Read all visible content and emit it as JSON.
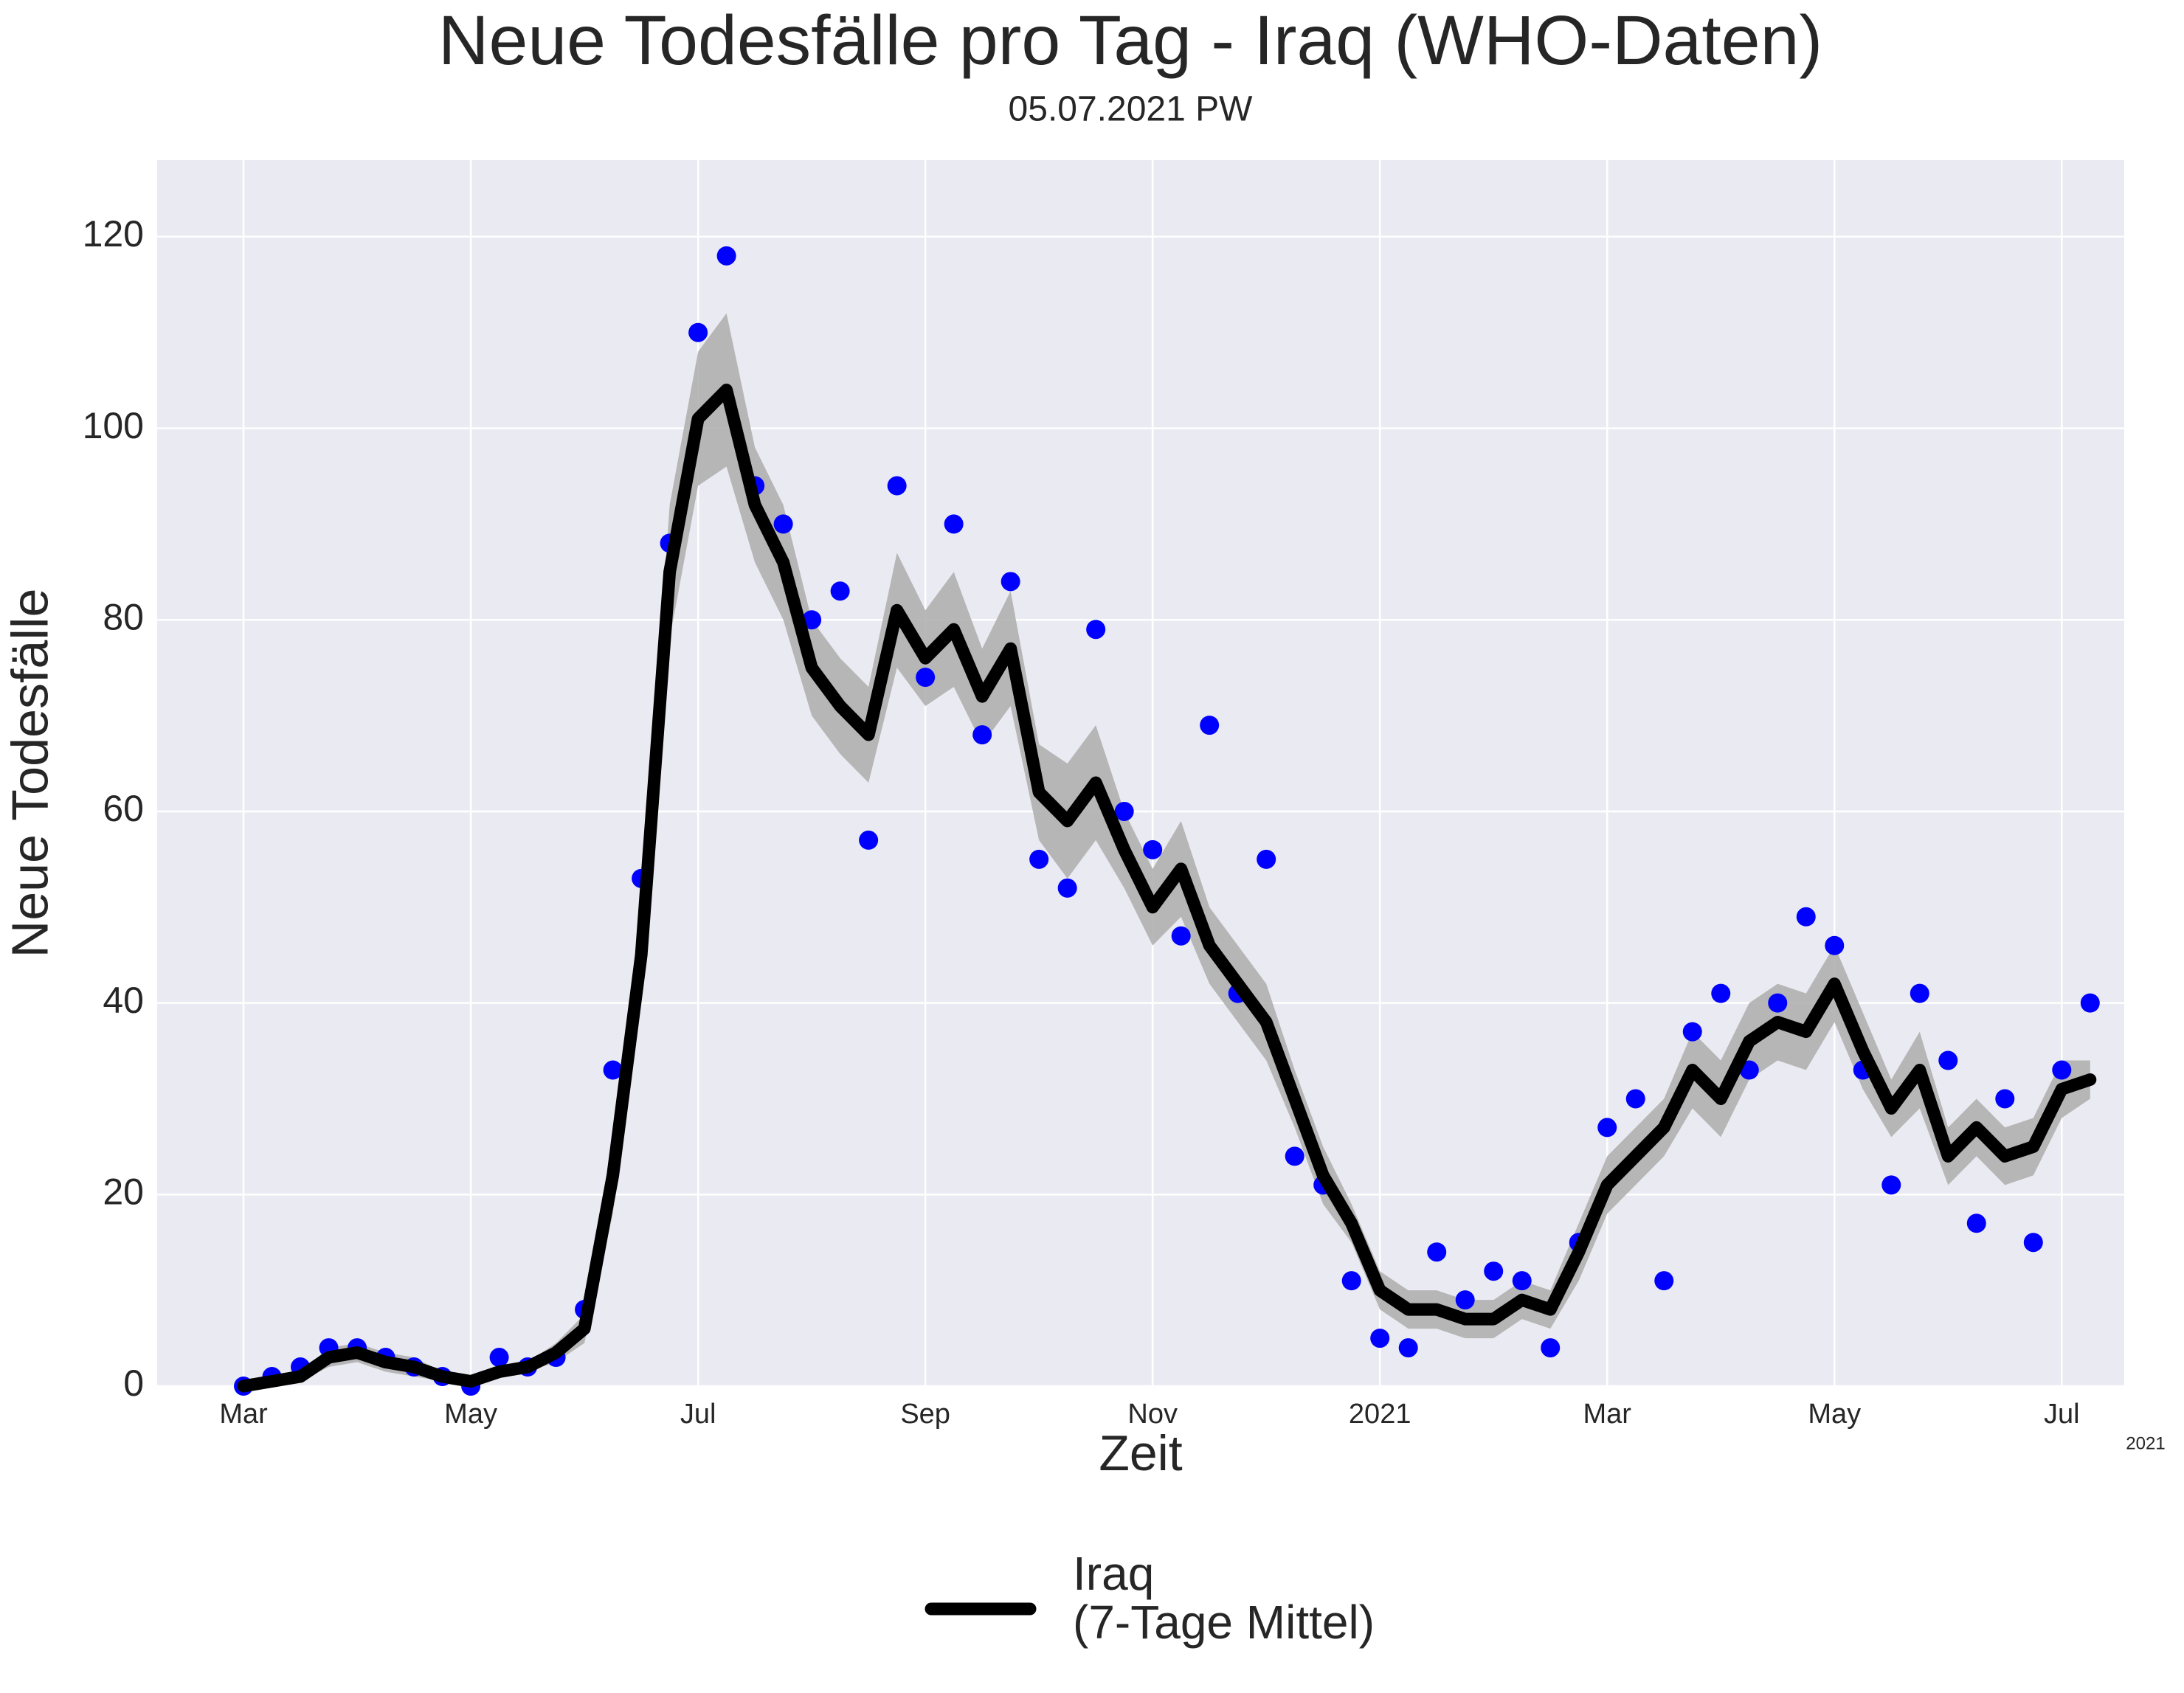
{
  "chart_data": {
    "type": "line",
    "title": "Neue Todesfälle pro Tag - Iraq (WHO-Daten)",
    "subtitle": "05.07.2021 PW",
    "x_label": "Zeit",
    "y_label": "Neue Todesfälle",
    "x_offset_label": "2021",
    "x": [
      0,
      0.25,
      0.5,
      0.75,
      1,
      1.25,
      1.5,
      1.75,
      2,
      2.25,
      2.5,
      2.75,
      3,
      3.25,
      3.5,
      3.75,
      4,
      4.25,
      4.5,
      4.75,
      5,
      5.25,
      5.5,
      5.75,
      6,
      6.25,
      6.5,
      6.75,
      7,
      7.25,
      7.5,
      7.75,
      8,
      8.25,
      8.5,
      8.75,
      9,
      9.25,
      9.5,
      9.75,
      10,
      10.25,
      10.5,
      10.75,
      11,
      11.25,
      11.5,
      11.75,
      12,
      12.25,
      12.5,
      12.75,
      13,
      13.25,
      13.5,
      13.75,
      14,
      14.25,
      14.5,
      14.75,
      15,
      15.25,
      15.5,
      15.75,
      16,
      16.25
    ],
    "series": [
      {
        "name": "Iraq\n(7-Tage Mittel)",
        "color": "#000000",
        "values": [
          0,
          0.5,
          1,
          3,
          3.5,
          2.5,
          2,
          1,
          0.5,
          1.5,
          2,
          3.5,
          6,
          22,
          45,
          85,
          101,
          104,
          92,
          86,
          75,
          71,
          68,
          81,
          76,
          79,
          72,
          77,
          62,
          59,
          63,
          56,
          50,
          54,
          46,
          42,
          38,
          30,
          22,
          17,
          10,
          8,
          8,
          7,
          7,
          9,
          8,
          14,
          21,
          24,
          27,
          33,
          30,
          36,
          38,
          37,
          42,
          35,
          29,
          33,
          24,
          27,
          24,
          25,
          31,
          32
        ]
      },
      {
        "style": "scatter",
        "color": "#0000ff",
        "values": [
          0,
          1,
          2,
          4,
          4,
          3,
          2,
          1,
          0,
          3,
          2,
          3,
          8,
          33,
          53,
          88,
          110,
          118,
          94,
          90,
          80,
          83,
          57,
          94,
          74,
          90,
          68,
          84,
          55,
          52,
          79,
          60,
          56,
          47,
          69,
          41,
          55,
          24,
          21,
          11,
          5,
          4,
          14,
          9,
          12,
          11,
          4,
          15,
          27,
          30,
          11,
          37,
          41,
          33,
          40,
          49,
          46,
          33,
          21,
          41,
          34,
          17,
          30,
          15,
          33,
          40
        ]
      }
    ],
    "band": {
      "color": "#b0b0b0",
      "lower": [
        0,
        0,
        0.5,
        2,
        2.5,
        1.5,
        1,
        0.5,
        0,
        1,
        1.5,
        2.5,
        4.5,
        18,
        40,
        78,
        94,
        96,
        86,
        80,
        70,
        66,
        63,
        75,
        71,
        73,
        67,
        71,
        57,
        53,
        57,
        52,
        46,
        49,
        42,
        38,
        34,
        27,
        19,
        15,
        8,
        6,
        6,
        5,
        5,
        7,
        6,
        11,
        18,
        21,
        24,
        29,
        26,
        32,
        34,
        33,
        38,
        31,
        26,
        29,
        21,
        24,
        21,
        22,
        28,
        30
      ],
      "upper": [
        0,
        1,
        1.5,
        4,
        4.5,
        3.5,
        3,
        1.5,
        1,
        2,
        2.5,
        4.5,
        7.5,
        26,
        50,
        92,
        108,
        112,
        98,
        92,
        80,
        76,
        73,
        87,
        81,
        85,
        77,
        83,
        67,
        65,
        69,
        60,
        54,
        59,
        50,
        46,
        42,
        33,
        25,
        19,
        12,
        10,
        10,
        9,
        9,
        11,
        10,
        17,
        24,
        27,
        30,
        37,
        34,
        40,
        42,
        41,
        46,
        39,
        32,
        37,
        27,
        30,
        27,
        28,
        34,
        34
      ]
    },
    "xlim": [
      -0.76,
      16.55
    ],
    "xticks": [
      {
        "value": 0,
        "label": "Mar"
      },
      {
        "value": 2,
        "label": "May"
      },
      {
        "value": 4,
        "label": "Jul"
      },
      {
        "value": 6,
        "label": "Sep"
      },
      {
        "value": 8,
        "label": "Nov"
      },
      {
        "value": 10,
        "label": "2021"
      },
      {
        "value": 12,
        "label": "Mar"
      },
      {
        "value": 14,
        "label": "May"
      },
      {
        "value": 16,
        "label": "Jul"
      }
    ],
    "ylim": [
      0,
      128
    ],
    "yticks": [
      0,
      20,
      40,
      60,
      80,
      100,
      120
    ],
    "grid": true,
    "legend": "bottom"
  }
}
